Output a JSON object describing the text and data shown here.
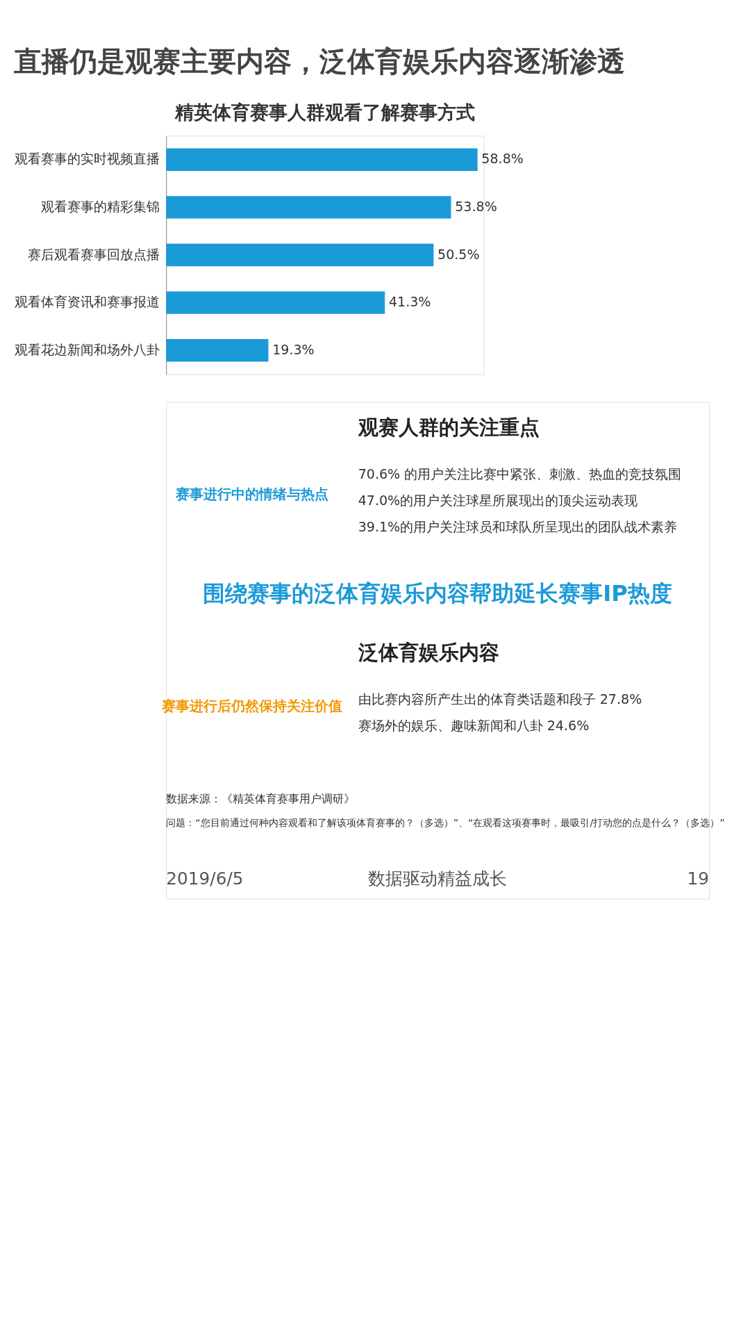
{
  "chart_data": {
    "type": "bar",
    "orientation": "horizontal",
    "title": "直播仍是观赛主要内容，泛体育娱乐内容逐渐渗透",
    "subtitle": "精英体育赛事人群观看了解赛事方式",
    "categories": [
      "观看赛事的实时视频直播",
      "观看赛事的精彩集锦",
      "赛后观看赛事回放点播",
      "观看体育资讯和赛事报道",
      "观看花边新闻和场外八卦"
    ],
    "values": [
      58.8,
      53.8,
      50.5,
      41.3,
      19.3
    ],
    "value_labels": [
      "58.8%",
      "53.8%",
      "50.5%",
      "41.3%",
      "19.3%"
    ],
    "color": "#1b9ad8",
    "grid": false,
    "tick_labels": "y",
    "annotations": [
      "观赛人群的关注重点",
      "赛事进行中的情绪与热点",
      "70.6% 的用户关注比赛中紧张、刺激、热血的竞技氛围",
      "47.0%的用户关注球星所展现出的顶尖运动表现",
      "39.1%的用户关注球员和球队所呈现出的团队战术素养",
      "围绕赛事的泛体育娱乐内容帮助延长赛事IP热度",
      "泛体育娱乐内容",
      "赛事进行后仍然保持关注价值",
      "由比赛内容所产生出的体育类话题和段子  27.8%",
      "赛场外的娱乐、趣味新闻和八卦 24.6%",
      "数据来源：《精英体育赛事用户调研》",
      "问题：“您目前通过何种内容观看和了解该项体育赛事的？（多选）”、“在观看这项赛事时，最吸引/打动您的点是什么？（多选）”",
      "2019/6/5",
      "数据驱动精益成长",
      "19"
    ]
  }
}
